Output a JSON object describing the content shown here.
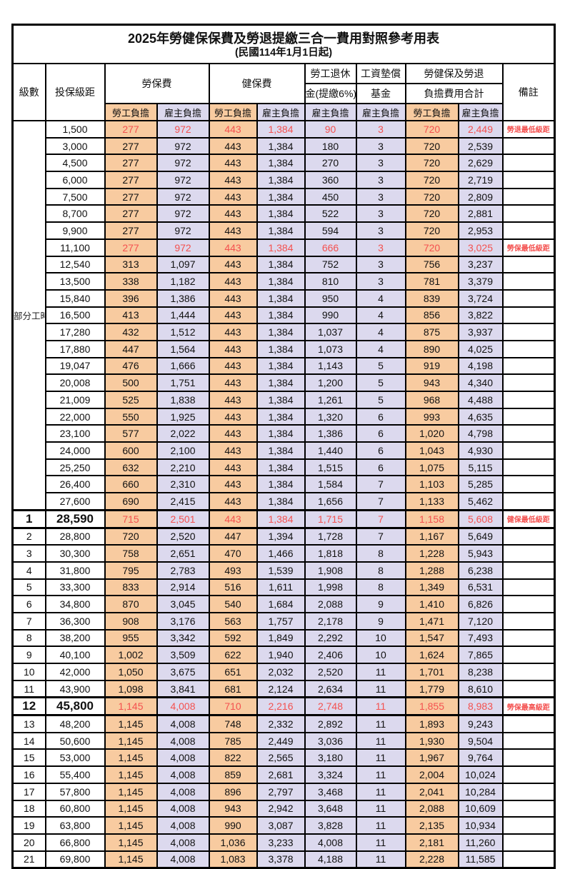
{
  "page": {
    "title": "2025年勞健保保費及勞退提繳三合一費用對照參考用表",
    "subtitle": "(民國114年1月1日起)"
  },
  "table": {
    "columns": {
      "grade": "級數",
      "bracket": "投保級距",
      "labor_insurance": "勞保費",
      "health_insurance": "健保費",
      "pension_line1": "勞工退休",
      "pension_line2": "金(提繳6%)",
      "wage_fund_line1": "工資墊償",
      "wage_fund_line2": "基金",
      "total_line1": "勞健保及勞退",
      "total_line2": "負擔費用合計",
      "remark": "備註"
    },
    "subheaders": {
      "employee": "勞工負擔",
      "employer": "雇主負擔"
    },
    "part_time_label": "部分工時",
    "part_time_rowspan": 23,
    "colors": {
      "employee_burden_bg": "#F8CBA0",
      "employer_burden_bg": "#DCD9EE",
      "highlight_text": "#F4514F",
      "grid_border": "#000000"
    },
    "rows": [
      {
        "g": "",
        "b": "1,500",
        "v": [
          "277",
          "972",
          "443",
          "1,384",
          "90",
          "3",
          "720",
          "2,449"
        ],
        "r": "勞退最低級距",
        "red": true,
        "big": false,
        "box": false
      },
      {
        "g": "",
        "b": "3,000",
        "v": [
          "277",
          "972",
          "443",
          "1,384",
          "180",
          "3",
          "720",
          "2,539"
        ],
        "r": "",
        "red": false,
        "big": false,
        "box": false
      },
      {
        "g": "",
        "b": "4,500",
        "v": [
          "277",
          "972",
          "443",
          "1,384",
          "270",
          "3",
          "720",
          "2,629"
        ],
        "r": "",
        "red": false,
        "big": false,
        "box": false
      },
      {
        "g": "",
        "b": "6,000",
        "v": [
          "277",
          "972",
          "443",
          "1,384",
          "360",
          "3",
          "720",
          "2,719"
        ],
        "r": "",
        "red": false,
        "big": false,
        "box": false
      },
      {
        "g": "",
        "b": "7,500",
        "v": [
          "277",
          "972",
          "443",
          "1,384",
          "450",
          "3",
          "720",
          "2,809"
        ],
        "r": "",
        "red": false,
        "big": false,
        "box": false
      },
      {
        "g": "",
        "b": "8,700",
        "v": [
          "277",
          "972",
          "443",
          "1,384",
          "522",
          "3",
          "720",
          "2,881"
        ],
        "r": "",
        "red": false,
        "big": false,
        "box": false
      },
      {
        "g": "",
        "b": "9,900",
        "v": [
          "277",
          "972",
          "443",
          "1,384",
          "594",
          "3",
          "720",
          "2,953"
        ],
        "r": "",
        "red": false,
        "big": false,
        "box": false
      },
      {
        "g": "",
        "b": "11,100",
        "v": [
          "277",
          "972",
          "443",
          "1,384",
          "666",
          "3",
          "720",
          "3,025"
        ],
        "r": "勞保最低級距",
        "red": true,
        "big": false,
        "box": false
      },
      {
        "g": "",
        "b": "12,540",
        "v": [
          "313",
          "1,097",
          "443",
          "1,384",
          "752",
          "3",
          "756",
          "3,237"
        ],
        "r": "",
        "red": false,
        "big": false,
        "box": false
      },
      {
        "g": "",
        "b": "13,500",
        "v": [
          "338",
          "1,182",
          "443",
          "1,384",
          "810",
          "3",
          "781",
          "3,379"
        ],
        "r": "",
        "red": false,
        "big": false,
        "box": false
      },
      {
        "g": "",
        "b": "15,840",
        "v": [
          "396",
          "1,386",
          "443",
          "1,384",
          "950",
          "4",
          "839",
          "3,724"
        ],
        "r": "",
        "red": false,
        "big": false,
        "box": false
      },
      {
        "g": "",
        "b": "16,500",
        "v": [
          "413",
          "1,444",
          "443",
          "1,384",
          "990",
          "4",
          "856",
          "3,822"
        ],
        "r": "",
        "red": false,
        "big": false,
        "box": false
      },
      {
        "g": "",
        "b": "17,280",
        "v": [
          "432",
          "1,512",
          "443",
          "1,384",
          "1,037",
          "4",
          "875",
          "3,937"
        ],
        "r": "",
        "red": false,
        "big": false,
        "box": false
      },
      {
        "g": "",
        "b": "17,880",
        "v": [
          "447",
          "1,564",
          "443",
          "1,384",
          "1,073",
          "4",
          "890",
          "4,025"
        ],
        "r": "",
        "red": false,
        "big": false,
        "box": false
      },
      {
        "g": "",
        "b": "19,047",
        "v": [
          "476",
          "1,666",
          "443",
          "1,384",
          "1,143",
          "5",
          "919",
          "4,198"
        ],
        "r": "",
        "red": false,
        "big": false,
        "box": false
      },
      {
        "g": "",
        "b": "20,008",
        "v": [
          "500",
          "1,751",
          "443",
          "1,384",
          "1,200",
          "5",
          "943",
          "4,340"
        ],
        "r": "",
        "red": false,
        "big": false,
        "box": false
      },
      {
        "g": "",
        "b": "21,009",
        "v": [
          "525",
          "1,838",
          "443",
          "1,384",
          "1,261",
          "5",
          "968",
          "4,488"
        ],
        "r": "",
        "red": false,
        "big": false,
        "box": false
      },
      {
        "g": "",
        "b": "22,000",
        "v": [
          "550",
          "1,925",
          "443",
          "1,384",
          "1,320",
          "6",
          "993",
          "4,635"
        ],
        "r": "",
        "red": false,
        "big": false,
        "box": false
      },
      {
        "g": "",
        "b": "23,100",
        "v": [
          "577",
          "2,022",
          "443",
          "1,384",
          "1,386",
          "6",
          "1,020",
          "4,798"
        ],
        "r": "",
        "red": false,
        "big": false,
        "box": false
      },
      {
        "g": "",
        "b": "24,000",
        "v": [
          "600",
          "2,100",
          "443",
          "1,384",
          "1,440",
          "6",
          "1,043",
          "4,930"
        ],
        "r": "",
        "red": false,
        "big": false,
        "box": false
      },
      {
        "g": "",
        "b": "25,250",
        "v": [
          "632",
          "2,210",
          "443",
          "1,384",
          "1,515",
          "6",
          "1,075",
          "5,115"
        ],
        "r": "",
        "red": false,
        "big": false,
        "box": false
      },
      {
        "g": "",
        "b": "26,400",
        "v": [
          "660",
          "2,310",
          "443",
          "1,384",
          "1,584",
          "7",
          "1,103",
          "5,285"
        ],
        "r": "",
        "red": false,
        "big": false,
        "box": false
      },
      {
        "g": "",
        "b": "27,600",
        "v": [
          "690",
          "2,415",
          "443",
          "1,384",
          "1,656",
          "7",
          "1,133",
          "5,462"
        ],
        "r": "",
        "red": false,
        "big": false,
        "box": false
      },
      {
        "g": "1",
        "b": "28,590",
        "v": [
          "715",
          "2,501",
          "443",
          "1,384",
          "1,715",
          "7",
          "1,158",
          "5,608"
        ],
        "r": "健保最低級距",
        "red": true,
        "big": true,
        "box": true
      },
      {
        "g": "2",
        "b": "28,800",
        "v": [
          "720",
          "2,520",
          "447",
          "1,394",
          "1,728",
          "7",
          "1,167",
          "5,649"
        ],
        "r": "",
        "red": false,
        "big": false,
        "box": false
      },
      {
        "g": "3",
        "b": "30,300",
        "v": [
          "758",
          "2,651",
          "470",
          "1,466",
          "1,818",
          "8",
          "1,228",
          "5,943"
        ],
        "r": "",
        "red": false,
        "big": false,
        "box": false
      },
      {
        "g": "4",
        "b": "31,800",
        "v": [
          "795",
          "2,783",
          "493",
          "1,539",
          "1,908",
          "8",
          "1,288",
          "6,238"
        ],
        "r": "",
        "red": false,
        "big": false,
        "box": false
      },
      {
        "g": "5",
        "b": "33,300",
        "v": [
          "833",
          "2,914",
          "516",
          "1,611",
          "1,998",
          "8",
          "1,349",
          "6,531"
        ],
        "r": "",
        "red": false,
        "big": false,
        "box": false
      },
      {
        "g": "6",
        "b": "34,800",
        "v": [
          "870",
          "3,045",
          "540",
          "1,684",
          "2,088",
          "9",
          "1,410",
          "6,826"
        ],
        "r": "",
        "red": false,
        "big": false,
        "box": false
      },
      {
        "g": "7",
        "b": "36,300",
        "v": [
          "908",
          "3,176",
          "563",
          "1,757",
          "2,178",
          "9",
          "1,471",
          "7,120"
        ],
        "r": "",
        "red": false,
        "big": false,
        "box": false
      },
      {
        "g": "8",
        "b": "38,200",
        "v": [
          "955",
          "3,342",
          "592",
          "1,849",
          "2,292",
          "10",
          "1,547",
          "7,493"
        ],
        "r": "",
        "red": false,
        "big": false,
        "box": false
      },
      {
        "g": "9",
        "b": "40,100",
        "v": [
          "1,002",
          "3,509",
          "622",
          "1,940",
          "2,406",
          "10",
          "1,624",
          "7,865"
        ],
        "r": "",
        "red": false,
        "big": false,
        "box": false
      },
      {
        "g": "10",
        "b": "42,000",
        "v": [
          "1,050",
          "3,675",
          "651",
          "2,032",
          "2,520",
          "11",
          "1,701",
          "8,238"
        ],
        "r": "",
        "red": false,
        "big": false,
        "box": false
      },
      {
        "g": "11",
        "b": "43,900",
        "v": [
          "1,098",
          "3,841",
          "681",
          "2,124",
          "2,634",
          "11",
          "1,779",
          "8,610"
        ],
        "r": "",
        "red": false,
        "big": false,
        "box": false
      },
      {
        "g": "12",
        "b": "45,800",
        "v": [
          "1,145",
          "4,008",
          "710",
          "2,216",
          "2,748",
          "11",
          "1,855",
          "8,983"
        ],
        "r": "勞保最高級距",
        "red": true,
        "big": true,
        "box": true
      },
      {
        "g": "13",
        "b": "48,200",
        "v": [
          "1,145",
          "4,008",
          "748",
          "2,332",
          "2,892",
          "11",
          "1,893",
          "9,243"
        ],
        "r": "",
        "red": false,
        "big": false,
        "box": false
      },
      {
        "g": "14",
        "b": "50,600",
        "v": [
          "1,145",
          "4,008",
          "785",
          "2,449",
          "3,036",
          "11",
          "1,930",
          "9,504"
        ],
        "r": "",
        "red": false,
        "big": false,
        "box": false
      },
      {
        "g": "15",
        "b": "53,000",
        "v": [
          "1,145",
          "4,008",
          "822",
          "2,565",
          "3,180",
          "11",
          "1,967",
          "9,764"
        ],
        "r": "",
        "red": false,
        "big": false,
        "box": false
      },
      {
        "g": "16",
        "b": "55,400",
        "v": [
          "1,145",
          "4,008",
          "859",
          "2,681",
          "3,324",
          "11",
          "2,004",
          "10,024"
        ],
        "r": "",
        "red": false,
        "big": false,
        "box": false
      },
      {
        "g": "17",
        "b": "57,800",
        "v": [
          "1,145",
          "4,008",
          "896",
          "2,797",
          "3,468",
          "11",
          "2,041",
          "10,284"
        ],
        "r": "",
        "red": false,
        "big": false,
        "box": false
      },
      {
        "g": "18",
        "b": "60,800",
        "v": [
          "1,145",
          "4,008",
          "943",
          "2,942",
          "3,648",
          "11",
          "2,088",
          "10,609"
        ],
        "r": "",
        "red": false,
        "big": false,
        "box": false
      },
      {
        "g": "19",
        "b": "63,800",
        "v": [
          "1,145",
          "4,008",
          "990",
          "3,087",
          "3,828",
          "11",
          "2,135",
          "10,934"
        ],
        "r": "",
        "red": false,
        "big": false,
        "box": false
      },
      {
        "g": "20",
        "b": "66,800",
        "v": [
          "1,145",
          "4,008",
          "1,036",
          "3,233",
          "4,008",
          "11",
          "2,181",
          "11,260"
        ],
        "r": "",
        "red": false,
        "big": false,
        "box": false
      },
      {
        "g": "21",
        "b": "69,800",
        "v": [
          "1,145",
          "4,008",
          "1,083",
          "3,378",
          "4,188",
          "11",
          "2,228",
          "11,585"
        ],
        "r": "",
        "red": false,
        "big": false,
        "box": false
      }
    ]
  }
}
